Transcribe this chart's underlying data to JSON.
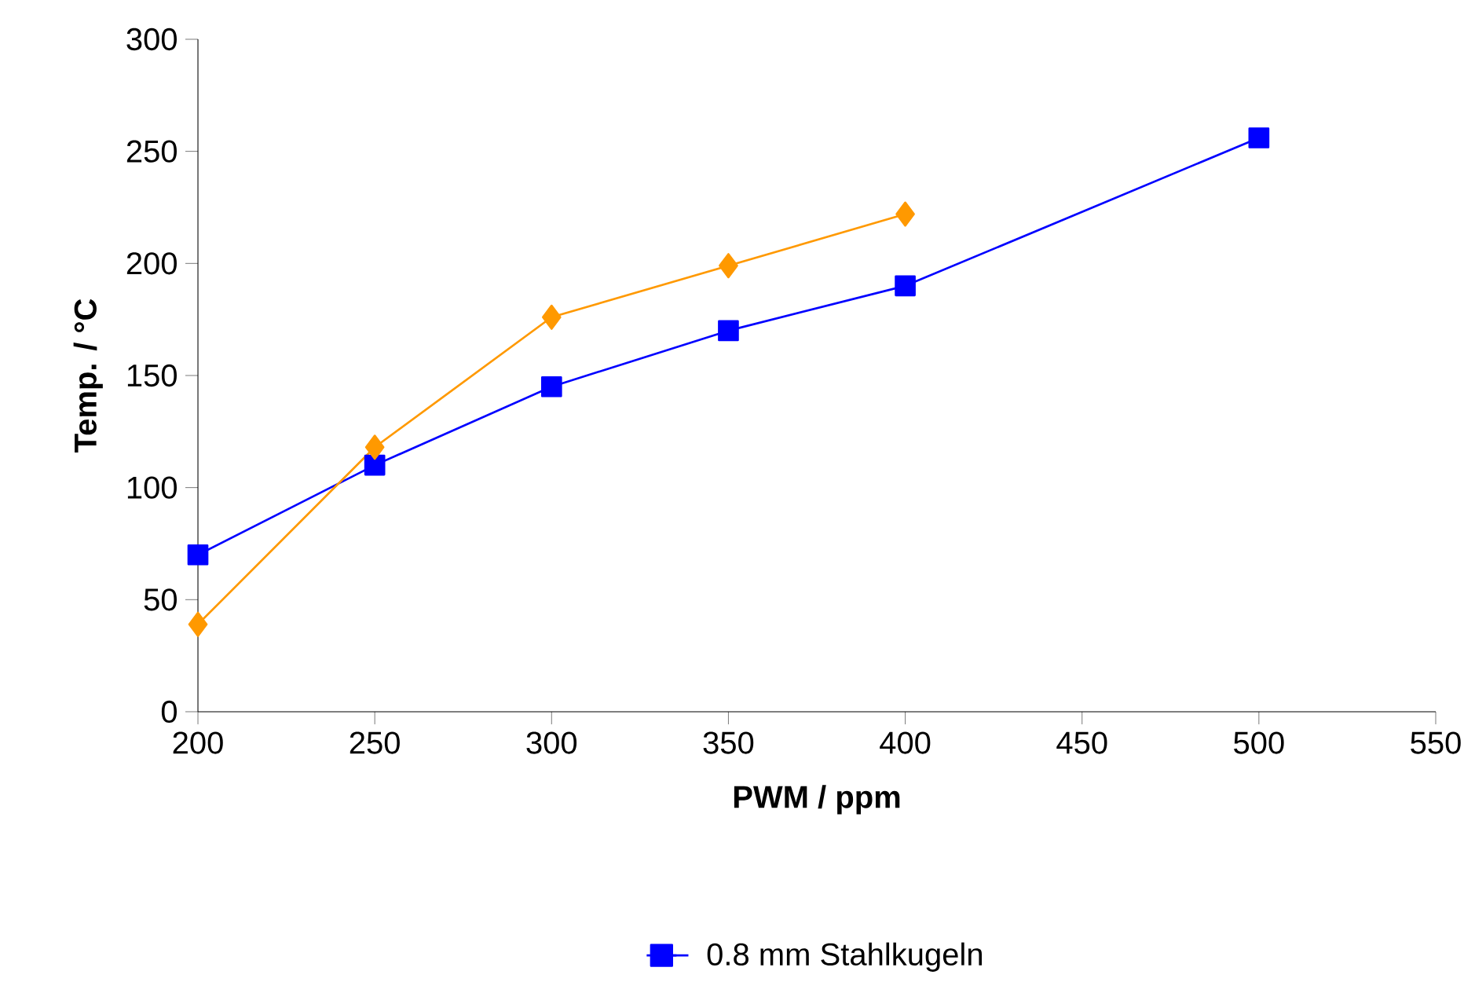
{
  "chart_data": {
    "type": "line",
    "xlabel": "PWM / ppm",
    "ylabel": "Temp. / °C",
    "xlim": [
      200,
      550
    ],
    "xticks": [
      200,
      250,
      300,
      350,
      400,
      450,
      500,
      550
    ],
    "ylim": [
      0,
      300
    ],
    "yticks": [
      0,
      50,
      100,
      150,
      200,
      250,
      300
    ],
    "grid": false,
    "legend": "bottom",
    "series": [
      {
        "name": "0.8 mm Stahlkugeln",
        "color": "#0000ff",
        "marker": "square",
        "x": [
          200,
          250,
          300,
          350,
          400,
          500
        ],
        "values": [
          70,
          110,
          145,
          170,
          190,
          256
        ]
      },
      {
        "color": "#ff9900",
        "marker": "diamond",
        "x": [
          200,
          250,
          300,
          350,
          400
        ],
        "values": [
          39,
          118,
          176,
          199,
          222
        ]
      }
    ]
  }
}
